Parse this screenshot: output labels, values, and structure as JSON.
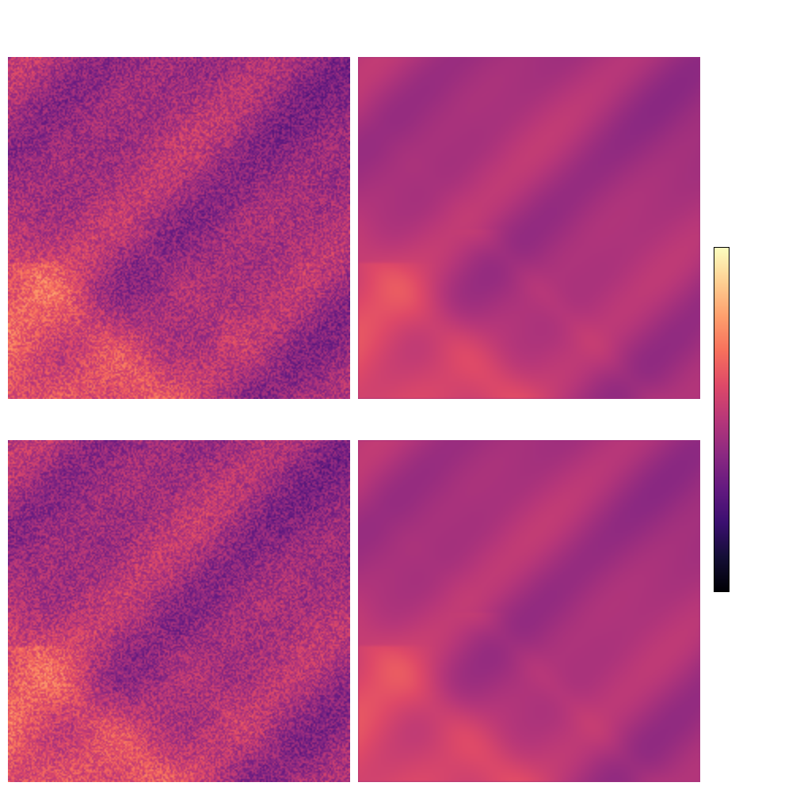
{
  "figure": {
    "panels": [
      {
        "id": "top-left",
        "texture": "noisy",
        "bands": "streaks"
      },
      {
        "id": "top-right",
        "texture": "smooth",
        "bands": "streaks"
      },
      {
        "id": "bottom-left",
        "texture": "noisy",
        "bands": "streaks"
      },
      {
        "id": "bottom-right",
        "texture": "smooth",
        "bands": "streaks"
      }
    ],
    "colormap": {
      "name": "magma",
      "stops": [
        "#000004",
        "#140e36",
        "#3b0f70",
        "#641a80",
        "#8c2981",
        "#b73779",
        "#de4968",
        "#f7705c",
        "#fe9f6d",
        "#fecf92",
        "#fcfdbf"
      ]
    }
  }
}
